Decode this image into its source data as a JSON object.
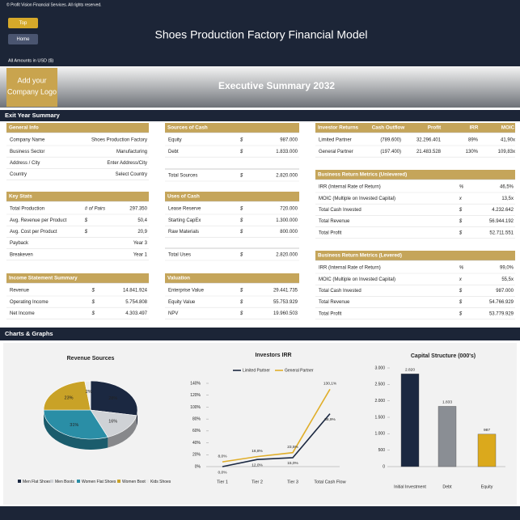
{
  "copyright": "© Profit Vision Financial Services. All rights reserved.",
  "nav": [
    "Top",
    "Home"
  ],
  "title": "Shoes Production Factory Financial Model",
  "currency_note": "All Amounts in  USD ($)",
  "logo": [
    "Add your",
    "Company Logo"
  ],
  "summary_title": "Executive Summary 2032",
  "sections": [
    "Exit Year Summary",
    "Charts & Graphs"
  ],
  "tables": [
    {
      "title": "General Info",
      "rows": [
        [
          "Company Name",
          "Shoes Production Factory"
        ],
        [
          "Business Sector",
          "Manufacturing"
        ],
        [
          "Address / City",
          "Enter Address/City"
        ],
        [
          "Country",
          "Select Country"
        ]
      ]
    },
    {
      "title": "Key Stats",
      "rows": [
        [
          "Total Production",
          "# of Pairs",
          "297.350"
        ],
        [
          "Avg. Revenue per Product",
          "$",
          "50,4"
        ],
        [
          "Avg. Cost per Product",
          "$",
          "20,9"
        ],
        [
          "Payback",
          "Year 3"
        ],
        [
          "Breakeven",
          "Year 1"
        ]
      ]
    },
    {
      "title": "Income Statement Summary",
      "rows": [
        [
          "Revenue",
          "$",
          "14.841.924"
        ],
        [
          "Operating Income",
          "$",
          "5.754.808"
        ],
        [
          "Net Income",
          "$",
          "4.303.497"
        ]
      ]
    },
    {
      "title": "Sources of Cash",
      "rows": [
        [
          "Equity",
          "$",
          "987.000"
        ],
        [
          "Debt",
          "$",
          "1.833.000"
        ]
      ],
      "total": [
        "Total Sources",
        "$",
        "2.820.000"
      ]
    },
    {
      "title": "Uses of Cash",
      "rows": [
        [
          "Lease Reserve",
          "$",
          "720.000"
        ],
        [
          "Starting CapEx",
          "$",
          "1.300.000"
        ],
        [
          "Raw Materials",
          "$",
          "800.000"
        ]
      ],
      "total": [
        "Total Uses",
        "$",
        "2.820.000"
      ]
    },
    {
      "title": "Valuation",
      "rows": [
        [
          "Enterprise Value",
          "$",
          "29.441.735"
        ],
        [
          "Equity Value",
          "$",
          "55.753.929"
        ],
        [
          "NPV",
          "$",
          "19.960.503"
        ]
      ]
    },
    {
      "title": "Investor Returns",
      "columns": [
        "Cash Outflow",
        "Profit",
        "IRR",
        "MOIC"
      ],
      "rows": [
        [
          "Limited Partner",
          "(789.600)",
          "32.296.401",
          "89%",
          "41,90x"
        ],
        [
          "General Partner",
          "(197.400)",
          "21.483.528",
          "130%",
          "109,83x"
        ]
      ]
    },
    {
      "title": "Business Return Metrics (Unlevered)",
      "rows": [
        [
          "IRR (Internal Rate of Return)",
          "%",
          "46,5%"
        ],
        [
          "MOIC (Multiple on Invested Capital)",
          "x",
          "13,5x"
        ],
        [
          "Total Cash Invested",
          "$",
          "4.232.642"
        ],
        [
          "Total Revenue",
          "$",
          "56.944.192"
        ],
        [
          "Total Profit",
          "$",
          "52.711.551"
        ]
      ]
    },
    {
      "title": "Business Return Metrics (Levered)",
      "rows": [
        [
          "IRR (Internal Rate of Return)",
          "%",
          "99,0%"
        ],
        [
          "MOIC (Multiple on Invested Capital)",
          "x",
          "55,5x"
        ],
        [
          "Total Cash Invested",
          "$",
          "987.000"
        ],
        [
          "Total Revenue",
          "$",
          "54.766.929"
        ],
        [
          "Total Profit",
          "$",
          "53.779.929"
        ]
      ]
    }
  ],
  "chart_data": [
    {
      "type": "pie",
      "title": "Revenue Sources",
      "categories": [
        "Men Flat Shoes",
        "Men Boots",
        "Women Flat Shoes",
        "Women Boots",
        "Kids Shoes"
      ],
      "values": [
        28,
        16,
        31,
        23,
        2
      ],
      "value_labels": [
        "28%",
        "16%",
        "31%",
        "23%",
        "2%"
      ],
      "colors": [
        "#1b2841",
        "#cfd2d6",
        "#2a8ea6",
        "#c9a227",
        "#ececec"
      ]
    },
    {
      "type": "line",
      "title": "Investors IRR",
      "categories": [
        "Tier 1",
        "Tier 2",
        "Tier 3",
        "Total Cash Flow"
      ],
      "series": [
        {
          "name": "Limited Partner",
          "color": "#1b2841",
          "values": [
            0,
            12,
            15,
            88.9
          ],
          "value_labels": [
            "0,0%",
            "12,0%",
            "15,0%",
            "88,9%"
          ]
        },
        {
          "name": "General Partner",
          "color": "#e0ae2a",
          "values": [
            8,
            16.8,
            23.5,
            130.1
          ],
          "value_labels": [
            "8,0%",
            "16,8%",
            "23,5%",
            "130,1%"
          ]
        }
      ],
      "ylim": [
        0,
        140
      ],
      "yticks": [
        {
          "value": 0,
          "label": "0%"
        },
        {
          "value": 20,
          "label": "20%"
        },
        {
          "value": 40,
          "label": "40%"
        },
        {
          "value": 60,
          "label": "60%"
        },
        {
          "value": 80,
          "label": "80%"
        },
        {
          "value": 100,
          "label": "100%"
        },
        {
          "value": 120,
          "label": "120%"
        },
        {
          "value": 140,
          "label": "140%"
        }
      ],
      "grid": false
    },
    {
      "type": "bar",
      "title": "Capital Structure (000's)",
      "categories": [
        "Initial Investment",
        "Debt",
        "Equity"
      ],
      "values": [
        2820,
        1833,
        987
      ],
      "value_labels": [
        "2.820",
        "1.833",
        "987"
      ],
      "colors": [
        "#1b2841",
        "#8a8e94",
        "#dba91c"
      ],
      "ylim": [
        0,
        3000
      ],
      "yticks": [
        0,
        500,
        {
          "value": 1000,
          "label": "1.000"
        },
        {
          "value": 1500,
          "label": "1.500"
        },
        {
          "value": 2000,
          "label": "2.000"
        },
        {
          "value": 2500,
          "label": "2.500"
        },
        {
          "value": 3000,
          "label": "3.000"
        }
      ],
      "grid": false
    }
  ]
}
